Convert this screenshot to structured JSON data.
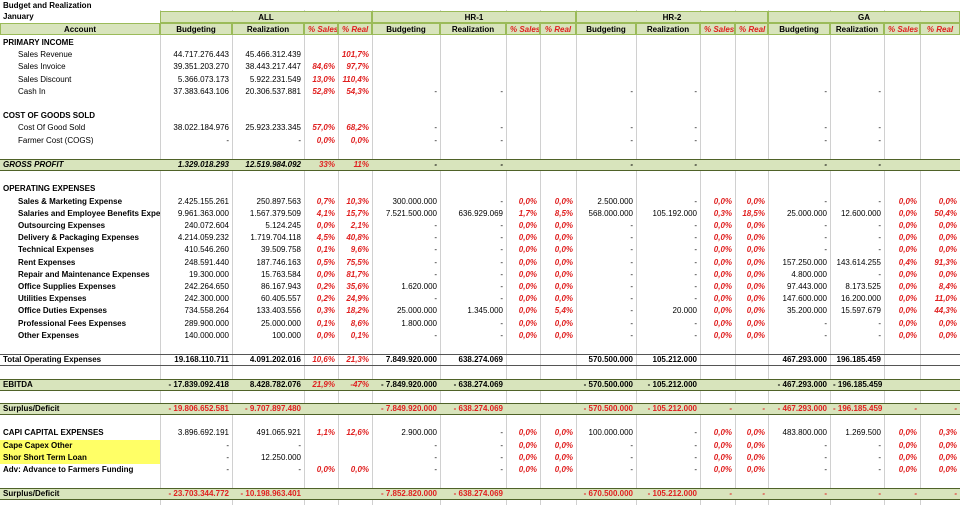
{
  "header": {
    "title": "Budget and Realization",
    "period": "January",
    "groups": [
      "ALL",
      "HR-1",
      "HR-2",
      "GA"
    ],
    "columns": [
      "Account",
      "Budgeting",
      "Realization",
      "% Sales",
      "% Real",
      "Budgeting",
      "Realization",
      "% Sales",
      "% Real",
      "Budgeting",
      "Realization",
      "% Sales",
      "% Real",
      "Budgeting",
      "Realization",
      "% Sales",
      "% Real"
    ]
  },
  "rows": [
    [
      "PRIMARY INCOME"
    ],
    [
      "Sales Revenue",
      "44.717.276.443",
      "45.466.312.439",
      null,
      "101,7%"
    ],
    [
      "Sales Invoice",
      "39.351.203.270",
      "38.443.217.447",
      "84,6%",
      "97,7%"
    ],
    [
      "Sales Discount",
      "5.366.073.173",
      "5.922.231.549",
      "13,0%",
      "110,4%"
    ],
    [
      "Cash In",
      "37.383.643.106",
      "20.306.537.881",
      "52,8%",
      "54,3%",
      "-",
      "-",
      null,
      null,
      "-",
      "-",
      null,
      null,
      "-",
      "-"
    ],
    [
      "COST OF GOODS SOLD"
    ],
    [
      "Cost Of Good Sold",
      "38.022.184.976",
      "25.923.233.345",
      "57,0%",
      "68,2%",
      "-",
      "-",
      null,
      null,
      "-",
      "-",
      null,
      null,
      "-",
      "-"
    ],
    [
      "Farmer Cost (COGS)",
      "-",
      "-",
      "0,0%",
      "0,0%",
      "-",
      "-",
      null,
      null,
      "-",
      "-",
      null,
      null,
      "-",
      "-"
    ],
    [
      "GROSS PROFIT",
      "1.329.018.293",
      "12.519.984.092",
      "33%",
      "11%",
      "-",
      "-",
      null,
      null,
      "-",
      "-",
      null,
      null,
      "-",
      "-"
    ],
    [
      "OPERATING EXPENSES"
    ],
    [
      "Sales & Marketing Expense",
      "2.425.155.261",
      "250.897.563",
      "0,7%",
      "10,3%",
      "300.000.000",
      "-",
      "0,0%",
      "0,0%",
      "2.500.000",
      "-",
      "0,0%",
      "0,0%",
      "-",
      "-",
      "0,0%",
      "0,0%"
    ],
    [
      "Salaries and Employee Benefits Expense",
      "9.961.363.000",
      "1.567.379.509",
      "4,1%",
      "15,7%",
      "7.521.500.000",
      "636.929.069",
      "1,7%",
      "8,5%",
      "568.000.000",
      "105.192.000",
      "0,3%",
      "18,5%",
      "25.000.000",
      "12.600.000",
      "0,0%",
      "50,4%"
    ],
    [
      "Outsourcing Expenses",
      "240.072.604",
      "5.124.245",
      "0,0%",
      "2,1%",
      "-",
      "-",
      "0,0%",
      "0,0%",
      "-",
      "-",
      "0,0%",
      "0,0%",
      "-",
      "-",
      "0,0%",
      "0,0%"
    ],
    [
      "Delivery & Packaging Expenses",
      "4.214.059.232",
      "1.719.704.118",
      "4,5%",
      "40,8%",
      "-",
      "-",
      "0,0%",
      "0,0%",
      "-",
      "-",
      "0,0%",
      "0,0%",
      "-",
      "-",
      "0,0%",
      "0,0%"
    ],
    [
      "Technical Expenses",
      "410.546.260",
      "39.509.758",
      "0,1%",
      "9,6%",
      "-",
      "-",
      "0,0%",
      "0,0%",
      "-",
      "-",
      "0,0%",
      "0,0%",
      "-",
      "-",
      "0,0%",
      "0,0%"
    ],
    [
      "Rent Expenses",
      "248.591.440",
      "187.746.163",
      "0,5%",
      "75,5%",
      "-",
      "-",
      "0,0%",
      "0,0%",
      "-",
      "-",
      "0,0%",
      "0,0%",
      "157.250.000",
      "143.614.255",
      "0,4%",
      "91,3%"
    ],
    [
      "Repair and Maintenance Expenses",
      "19.300.000",
      "15.763.584",
      "0,0%",
      "81,7%",
      "-",
      "-",
      "0,0%",
      "0,0%",
      "-",
      "-",
      "0,0%",
      "0,0%",
      "4.800.000",
      "-",
      "0,0%",
      "0,0%"
    ],
    [
      "Office Supplies Expenses",
      "242.264.650",
      "86.167.943",
      "0,2%",
      "35,6%",
      "1.620.000",
      "-",
      "0,0%",
      "0,0%",
      "-",
      "-",
      "0,0%",
      "0,0%",
      "97.443.000",
      "8.173.525",
      "0,0%",
      "8,4%"
    ],
    [
      "Utilities Expenses",
      "242.300.000",
      "60.405.557",
      "0,2%",
      "24,9%",
      "-",
      "-",
      "0,0%",
      "0,0%",
      "-",
      "-",
      "0,0%",
      "0,0%",
      "147.600.000",
      "16.200.000",
      "0,0%",
      "11,0%"
    ],
    [
      "Office Duties Expenses",
      "734.558.264",
      "133.403.556",
      "0,3%",
      "18,2%",
      "25.000.000",
      "1.345.000",
      "0,0%",
      "5,4%",
      "-",
      "20.000",
      "0,0%",
      "0,0%",
      "35.200.000",
      "15.597.679",
      "0,0%",
      "44,3%"
    ],
    [
      "Professional Fees Expenses",
      "289.900.000",
      "25.000.000",
      "0,1%",
      "8,6%",
      "1.800.000",
      "-",
      "0,0%",
      "0,0%",
      "-",
      "-",
      "0,0%",
      "0,0%",
      "-",
      "-",
      "0,0%",
      "0,0%"
    ],
    [
      "Other Expenses",
      "140.000.000",
      "100.000",
      "0,0%",
      "0,1%",
      "-",
      "-",
      "0,0%",
      "0,0%",
      "-",
      "-",
      "0,0%",
      "0,0%",
      "-",
      "-",
      "0,0%",
      "0,0%"
    ],
    [
      "Total Operating Expenses",
      "19.168.110.711",
      "4.091.202.016",
      "10,6%",
      "21,3%",
      "7.849.920.000",
      "638.274.069",
      null,
      null,
      "570.500.000",
      "105.212.000",
      null,
      null,
      "467.293.000",
      "196.185.459"
    ],
    [
      "EBITDA",
      "- 17.839.092.418",
      "8.428.782.076",
      "21,9%",
      "-47%",
      "- 7.849.920.000",
      "- 638.274.069",
      null,
      null,
      "- 570.500.000",
      "- 105.212.000",
      null,
      null,
      "- 467.293.000",
      "- 196.185.459"
    ],
    [
      "Surplus/Deficit",
      "- 19.806.652.581",
      "- 9.707.897.480",
      null,
      null,
      "- 7.849.920.000",
      "- 638.274.069",
      null,
      null,
      "- 570.500.000",
      "- 105.212.000",
      "-",
      "-",
      "- 467.293.000",
      "- 196.185.459",
      "-",
      "-"
    ],
    [
      "CAPI CAPITAL EXPENSES",
      "3.896.692.191",
      "491.065.921",
      "1,1%",
      "12,6%",
      "2.900.000",
      "-",
      "0,0%",
      "0,0%",
      "100.000.000",
      "-",
      "0,0%",
      "0,0%",
      "483.800.000",
      "1.269.500",
      "0,0%",
      "0,3%"
    ],
    [
      "Cape Capex Other",
      "-",
      "-",
      null,
      null,
      "-",
      "-",
      "0,0%",
      "0,0%",
      "-",
      "-",
      "0,0%",
      "0,0%",
      "-",
      "-",
      "0,0%",
      "0,0%"
    ],
    [
      "Shor Short Term Loan",
      "-",
      "12.250.000",
      null,
      null,
      "-",
      "-",
      "0,0%",
      "0,0%",
      "-",
      "-",
      "0,0%",
      "0,0%",
      "-",
      "-",
      "0,0%",
      "0,0%"
    ],
    [
      "Adv: Advance to Farmers Funding",
      "-",
      "-",
      "0,0%",
      "0,0%",
      "-",
      "-",
      "0,0%",
      "0,0%",
      "-",
      "-",
      "0,0%",
      "0,0%",
      "-",
      "-",
      "0,0%",
      "0,0%"
    ],
    [
      "Surplus/Deficit",
      "- 23.703.344.772",
      "- 10.198.963.401",
      null,
      null,
      "- 7.852.820.000",
      "- 638.274.069",
      null,
      null,
      "- 670.500.000",
      "- 105.212.000",
      "-",
      "-",
      "-",
      "-",
      "-",
      "-"
    ]
  ]
}
